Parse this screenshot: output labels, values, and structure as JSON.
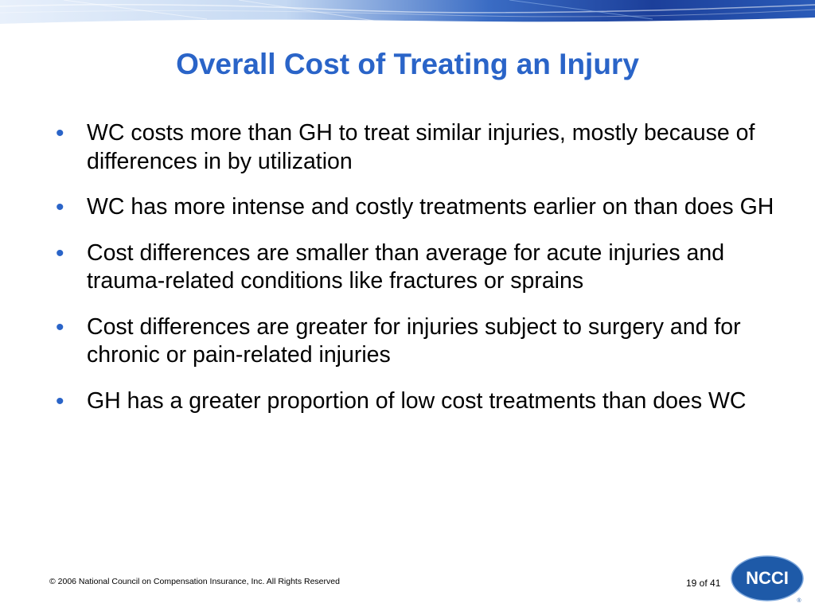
{
  "slide": {
    "title": "Overall Cost of Treating an Injury",
    "bullets": [
      {
        "text": "WC costs more than GH to treat similar injuries, mostly because of differences in by utilization"
      },
      {
        "text": "WC has more intense and costly treatments earlier on than does GH"
      },
      {
        "text": "Cost differences are smaller than average for acute injuries and trauma-related conditions like fractures or sprains"
      },
      {
        "text": "Cost differences are greater for injuries subject to surgery and for chronic or pain-related injuries"
      },
      {
        "text": "GH has a greater proportion of low cost treatments than does WC"
      }
    ],
    "bullet_symbol": "•"
  },
  "footer": {
    "copyright": "© 2006 National Council on Compensation Insurance, Inc. All Rights Reserved",
    "page_number": "19 of 41"
  },
  "logo": {
    "text": "NCCI",
    "registered": "®"
  },
  "colors": {
    "title": "#2a64c8",
    "bullet": "#2a64c8",
    "banner_dark": "#1c3f9a",
    "banner_light": "#cfe0f6",
    "logo_blue": "#1e5aa8"
  }
}
